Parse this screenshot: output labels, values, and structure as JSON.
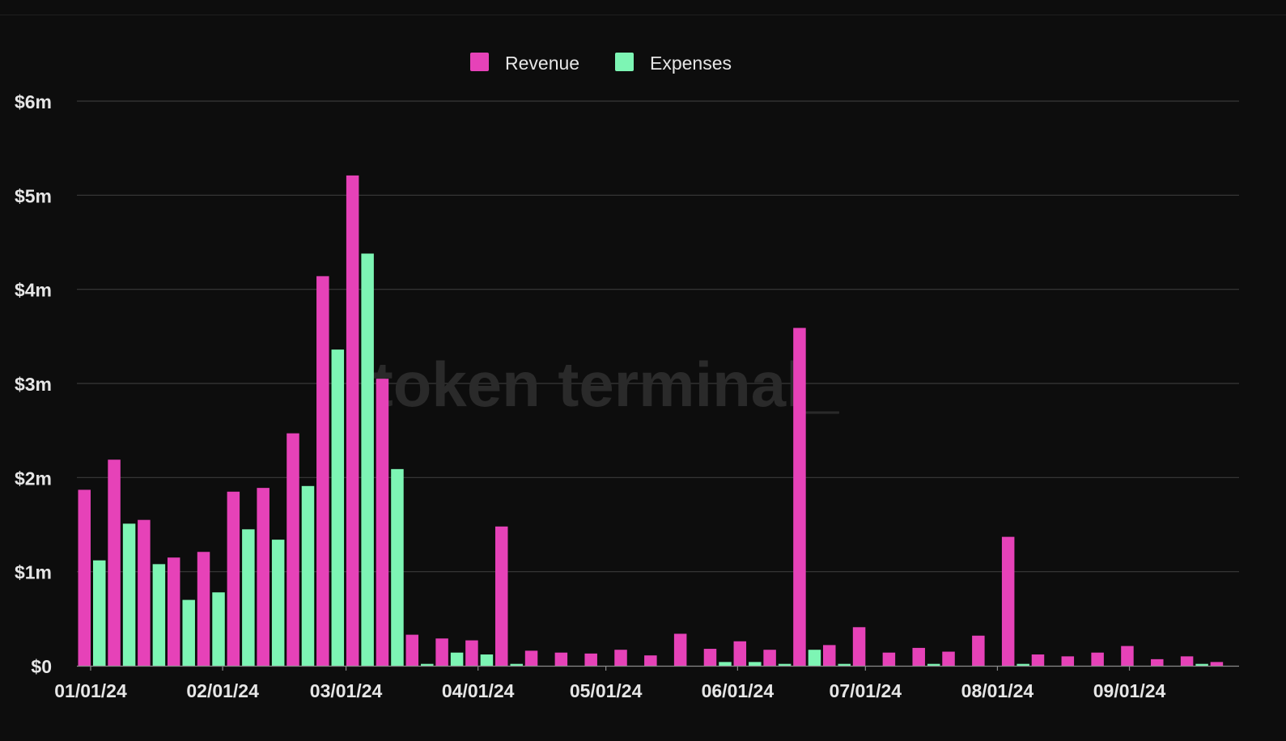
{
  "chart_data": {
    "type": "bar",
    "title": "",
    "xlabel": "",
    "ylabel": "",
    "ylim": [
      0,
      6000000
    ],
    "grid": true,
    "legend_position": "top-center",
    "watermark": "token terminal_",
    "colors": {
      "background": "#0d0d0d",
      "revenue": "#e642b8",
      "expenses": "#7df5b4",
      "grid": "#3a3a3a",
      "axis": "#8a8a8a",
      "text": "#e6e6e6",
      "watermark": "#2a2a2a"
    },
    "y_ticks": [
      {
        "value": 0,
        "label": "$0"
      },
      {
        "value": 1000000,
        "label": "$1m"
      },
      {
        "value": 2000000,
        "label": "$2m"
      },
      {
        "value": 3000000,
        "label": "$3m"
      },
      {
        "value": 4000000,
        "label": "$4m"
      },
      {
        "value": 5000000,
        "label": "$5m"
      },
      {
        "value": 6000000,
        "label": "$6m"
      }
    ],
    "x_tick_labels": [
      {
        "week_index": 0,
        "label": "01/01/24"
      },
      {
        "week_index": 4.43,
        "label": "02/01/24"
      },
      {
        "week_index": 8.57,
        "label": "03/01/24"
      },
      {
        "week_index": 13,
        "label": "04/01/24"
      },
      {
        "week_index": 17.29,
        "label": "05/01/24"
      },
      {
        "week_index": 21.71,
        "label": "06/01/24"
      },
      {
        "week_index": 26,
        "label": "07/01/24"
      },
      {
        "week_index": 30.43,
        "label": "08/01/24"
      },
      {
        "week_index": 34.86,
        "label": "09/01/24"
      }
    ],
    "categories": [
      "01/01/24",
      "01/08/24",
      "01/15/24",
      "01/22/24",
      "01/29/24",
      "02/05/24",
      "02/12/24",
      "02/19/24",
      "02/26/24",
      "03/04/24",
      "03/11/24",
      "03/18/24",
      "03/25/24",
      "04/01/24",
      "04/08/24",
      "04/15/24",
      "04/22/24",
      "04/29/24",
      "05/06/24",
      "05/13/24",
      "05/20/24",
      "05/27/24",
      "06/03/24",
      "06/10/24",
      "06/17/24",
      "06/24/24",
      "07/01/24",
      "07/08/24",
      "07/15/24",
      "07/22/24",
      "07/29/24",
      "08/05/24",
      "08/12/24",
      "08/19/24",
      "08/26/24",
      "09/02/24",
      "09/09/24",
      "09/16/24",
      "09/23/24"
    ],
    "series": [
      {
        "name": "Revenue",
        "values": [
          1870000,
          2190000,
          1550000,
          1150000,
          1210000,
          1850000,
          1890000,
          2470000,
          4140000,
          5210000,
          3050000,
          330000,
          290000,
          270000,
          1480000,
          160000,
          140000,
          130000,
          170000,
          110000,
          340000,
          180000,
          260000,
          170000,
          3590000,
          220000,
          410000,
          140000,
          190000,
          150000,
          320000,
          1370000,
          120000,
          100000,
          140000,
          210000,
          70000,
          100000,
          40000
        ]
      },
      {
        "name": "Expenses",
        "values": [
          1120000,
          1510000,
          1080000,
          700000,
          780000,
          1450000,
          1340000,
          1910000,
          3360000,
          4380000,
          2090000,
          20000,
          140000,
          120000,
          20000,
          0,
          0,
          0,
          0,
          0,
          0,
          40000,
          40000,
          20000,
          170000,
          20000,
          0,
          0,
          20000,
          0,
          0,
          20000,
          0,
          0,
          0,
          0,
          0,
          20000,
          0
        ]
      }
    ]
  }
}
